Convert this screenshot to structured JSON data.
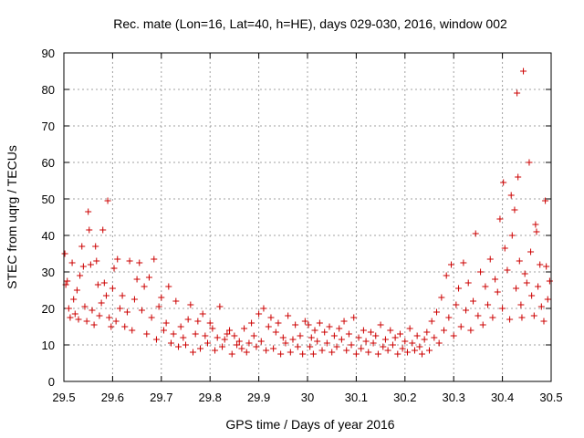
{
  "chart_data": {
    "type": "scatter",
    "title": "Rec. mate (Lon=16, Lat=40, h=HE), days 029-030, 2016, window 002",
    "xlabel": "GPS time / Days of year 2016",
    "ylabel": "STEC from uqrg / TECUs",
    "xlim": [
      29.5,
      30.5
    ],
    "ylim": [
      0,
      90
    ],
    "x_ticks": [
      "29.5",
      "29.6",
      "29.7",
      "29.8",
      "29.9",
      "30",
      "30.1",
      "30.2",
      "30.3",
      "30.4",
      "30.5"
    ],
    "y_ticks": [
      "0",
      "10",
      "20",
      "30",
      "40",
      "50",
      "60",
      "70",
      "80",
      "90"
    ],
    "grid": true,
    "marker": "plus",
    "marker_color": "#cc0000",
    "points": [
      [
        29.502,
        35.0
      ],
      [
        29.504,
        26.5
      ],
      [
        29.507,
        27.5
      ],
      [
        29.51,
        20.0
      ],
      [
        29.513,
        17.5
      ],
      [
        29.517,
        32.5
      ],
      [
        29.52,
        22.5
      ],
      [
        29.523,
        18.5
      ],
      [
        29.527,
        25.0
      ],
      [
        29.53,
        17.0
      ],
      [
        29.533,
        29.0
      ],
      [
        29.537,
        37.0
      ],
      [
        29.54,
        31.5
      ],
      [
        29.543,
        20.5
      ],
      [
        29.547,
        16.5
      ],
      [
        29.55,
        46.5
      ],
      [
        29.552,
        41.5
      ],
      [
        29.555,
        32.0
      ],
      [
        29.558,
        19.5
      ],
      [
        29.562,
        15.5
      ],
      [
        29.565,
        37.0
      ],
      [
        29.567,
        33.0
      ],
      [
        29.57,
        26.5
      ],
      [
        29.573,
        18.0
      ],
      [
        29.577,
        21.5
      ],
      [
        29.58,
        41.5
      ],
      [
        29.583,
        27.0
      ],
      [
        29.587,
        23.5
      ],
      [
        29.59,
        49.5
      ],
      [
        29.593,
        17.5
      ],
      [
        29.597,
        15.0
      ],
      [
        29.6,
        25.5
      ],
      [
        29.603,
        31.0
      ],
      [
        29.607,
        16.5
      ],
      [
        29.61,
        33.5
      ],
      [
        29.615,
        20.0
      ],
      [
        29.62,
        23.5
      ],
      [
        29.625,
        15.0
      ],
      [
        29.63,
        19.0
      ],
      [
        29.635,
        33.0
      ],
      [
        29.64,
        14.0
      ],
      [
        29.645,
        22.5
      ],
      [
        29.65,
        28.0
      ],
      [
        29.655,
        32.5
      ],
      [
        29.66,
        19.5
      ],
      [
        29.665,
        26.0
      ],
      [
        29.67,
        13.0
      ],
      [
        29.675,
        28.5
      ],
      [
        29.68,
        17.5
      ],
      [
        29.685,
        33.5
      ],
      [
        29.69,
        11.5
      ],
      [
        29.695,
        20.5
      ],
      [
        29.7,
        23.0
      ],
      [
        29.705,
        14.0
      ],
      [
        29.71,
        16.0
      ],
      [
        29.715,
        26.0
      ],
      [
        29.72,
        10.5
      ],
      [
        29.725,
        13.0
      ],
      [
        29.73,
        22.0
      ],
      [
        29.735,
        9.5
      ],
      [
        29.74,
        15.0
      ],
      [
        29.745,
        12.0
      ],
      [
        29.75,
        10.0
      ],
      [
        29.755,
        17.0
      ],
      [
        29.76,
        21.0
      ],
      [
        29.765,
        8.0
      ],
      [
        29.77,
        13.0
      ],
      [
        29.775,
        16.5
      ],
      [
        29.78,
        9.0
      ],
      [
        29.785,
        18.5
      ],
      [
        29.79,
        12.5
      ],
      [
        29.795,
        10.5
      ],
      [
        29.8,
        16.0
      ],
      [
        29.805,
        14.5
      ],
      [
        29.81,
        8.5
      ],
      [
        29.815,
        12.0
      ],
      [
        29.82,
        20.5
      ],
      [
        29.825,
        9.5
      ],
      [
        29.83,
        11.5
      ],
      [
        29.835,
        13.0
      ],
      [
        29.84,
        14.0
      ],
      [
        29.845,
        7.5
      ],
      [
        29.85,
        12.5
      ],
      [
        29.855,
        10.0
      ],
      [
        29.86,
        11.0
      ],
      [
        29.865,
        9.0
      ],
      [
        29.87,
        14.5
      ],
      [
        29.875,
        8.0
      ],
      [
        29.88,
        10.5
      ],
      [
        29.885,
        16.0
      ],
      [
        29.89,
        12.5
      ],
      [
        29.895,
        9.5
      ],
      [
        29.9,
        18.5
      ],
      [
        29.905,
        11.0
      ],
      [
        29.91,
        20.0
      ],
      [
        29.915,
        8.5
      ],
      [
        29.92,
        15.0
      ],
      [
        29.925,
        17.5
      ],
      [
        29.93,
        9.0
      ],
      [
        29.935,
        13.5
      ],
      [
        29.94,
        16.0
      ],
      [
        29.945,
        7.5
      ],
      [
        29.95,
        12.0
      ],
      [
        29.955,
        10.5
      ],
      [
        29.96,
        18.0
      ],
      [
        29.965,
        8.0
      ],
      [
        29.97,
        11.5
      ],
      [
        29.975,
        15.5
      ],
      [
        29.98,
        9.5
      ],
      [
        29.985,
        12.5
      ],
      [
        29.99,
        7.5
      ],
      [
        29.995,
        16.5
      ],
      [
        30.002,
        15.5
      ],
      [
        30.005,
        9.5
      ],
      [
        30.008,
        12.0
      ],
      [
        30.012,
        7.5
      ],
      [
        30.015,
        14.0
      ],
      [
        30.02,
        11.0
      ],
      [
        30.025,
        16.0
      ],
      [
        30.03,
        8.5
      ],
      [
        30.035,
        13.5
      ],
      [
        30.04,
        10.5
      ],
      [
        30.045,
        15.0
      ],
      [
        30.05,
        8.0
      ],
      [
        30.055,
        12.5
      ],
      [
        30.06,
        9.5
      ],
      [
        30.065,
        14.5
      ],
      [
        30.07,
        11.5
      ],
      [
        30.075,
        16.5
      ],
      [
        30.08,
        8.5
      ],
      [
        30.085,
        13.0
      ],
      [
        30.09,
        10.0
      ],
      [
        30.095,
        17.5
      ],
      [
        30.1,
        7.5
      ],
      [
        30.105,
        12.0
      ],
      [
        30.11,
        9.0
      ],
      [
        30.115,
        14.0
      ],
      [
        30.12,
        11.0
      ],
      [
        30.125,
        8.0
      ],
      [
        30.13,
        13.5
      ],
      [
        30.135,
        10.5
      ],
      [
        30.14,
        12.5
      ],
      [
        30.145,
        7.5
      ],
      [
        30.15,
        15.5
      ],
      [
        30.155,
        9.5
      ],
      [
        30.16,
        11.5
      ],
      [
        30.165,
        8.5
      ],
      [
        30.17,
        14.0
      ],
      [
        30.175,
        10.0
      ],
      [
        30.18,
        12.0
      ],
      [
        30.185,
        7.5
      ],
      [
        30.19,
        13.0
      ],
      [
        30.195,
        9.0
      ],
      [
        30.2,
        11.0
      ],
      [
        30.205,
        8.0
      ],
      [
        30.21,
        14.5
      ],
      [
        30.215,
        10.5
      ],
      [
        30.22,
        8.5
      ],
      [
        30.225,
        12.5
      ],
      [
        30.23,
        9.5
      ],
      [
        30.235,
        7.5
      ],
      [
        30.24,
        11.5
      ],
      [
        30.245,
        13.5
      ],
      [
        30.25,
        8.5
      ],
      [
        30.255,
        16.5
      ],
      [
        30.26,
        12.0
      ],
      [
        30.265,
        19.0
      ],
      [
        30.27,
        10.5
      ],
      [
        30.275,
        23.0
      ],
      [
        30.28,
        14.0
      ],
      [
        30.285,
        29.0
      ],
      [
        30.29,
        17.5
      ],
      [
        30.295,
        32.0
      ],
      [
        30.3,
        12.5
      ],
      [
        30.305,
        21.0
      ],
      [
        30.31,
        25.5
      ],
      [
        30.315,
        15.0
      ],
      [
        30.32,
        32.5
      ],
      [
        30.325,
        19.5
      ],
      [
        30.33,
        27.0
      ],
      [
        30.335,
        14.0
      ],
      [
        30.34,
        22.0
      ],
      [
        30.345,
        40.5
      ],
      [
        30.35,
        18.0
      ],
      [
        30.355,
        30.0
      ],
      [
        30.36,
        15.5
      ],
      [
        30.365,
        26.0
      ],
      [
        30.37,
        21.0
      ],
      [
        30.375,
        33.5
      ],
      [
        30.38,
        17.5
      ],
      [
        30.385,
        28.0
      ],
      [
        30.39,
        24.5
      ],
      [
        30.395,
        44.5
      ],
      [
        30.4,
        20.0
      ],
      [
        30.402,
        54.5
      ],
      [
        30.405,
        36.5
      ],
      [
        30.41,
        30.5
      ],
      [
        30.415,
        17.0
      ],
      [
        30.418,
        51.0
      ],
      [
        30.42,
        40.0
      ],
      [
        30.425,
        47.0
      ],
      [
        30.428,
        25.5
      ],
      [
        30.43,
        79.0
      ],
      [
        30.432,
        56.0
      ],
      [
        30.435,
        33.0
      ],
      [
        30.438,
        21.0
      ],
      [
        30.44,
        17.5
      ],
      [
        30.443,
        85.0
      ],
      [
        30.446,
        29.5
      ],
      [
        30.45,
        27.0
      ],
      [
        30.455,
        60.0
      ],
      [
        30.458,
        35.5
      ],
      [
        30.46,
        23.5
      ],
      [
        30.465,
        18.0
      ],
      [
        30.468,
        43.0
      ],
      [
        30.47,
        41.0
      ],
      [
        30.473,
        26.0
      ],
      [
        30.477,
        32.0
      ],
      [
        30.48,
        20.5
      ],
      [
        30.485,
        16.5
      ],
      [
        30.488,
        49.5
      ],
      [
        30.49,
        31.5
      ],
      [
        30.493,
        22.5
      ],
      [
        30.497,
        27.5
      ]
    ]
  }
}
